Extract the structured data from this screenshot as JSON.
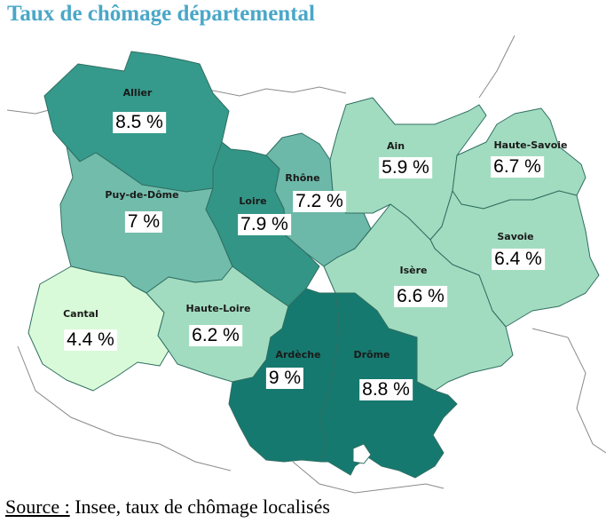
{
  "title": "Taux de chômage départemental",
  "source_label": "Source :",
  "source_text": " Insee, taux de chômage localisés",
  "departements": [
    {
      "key": "allier",
      "name": "Allier",
      "value": "8.5 %",
      "rate": 8.5,
      "color": "#359a8c"
    },
    {
      "key": "puy",
      "name": "Puy-de-Dôme",
      "value": "7 %",
      "rate": 7.0,
      "color": "#72bcab"
    },
    {
      "key": "loire",
      "name": "Loire",
      "value": "7.9 %",
      "rate": 7.9,
      "color": "#339586"
    },
    {
      "key": "rhone",
      "name": "Rhône",
      "value": "7.2 %",
      "rate": 7.2,
      "color": "#6cb8a9"
    },
    {
      "key": "ain",
      "name": "Ain",
      "value": "5.9 %",
      "rate": 5.9,
      "color": "#a2dcc0"
    },
    {
      "key": "hsavoie",
      "name": "Haute-Savoie",
      "value": "6.7 %",
      "rate": 6.7,
      "color": "#a2dcc0"
    },
    {
      "key": "savoie",
      "name": "Savoie",
      "value": "6.4 %",
      "rate": 6.4,
      "color": "#a2dcc0"
    },
    {
      "key": "isere",
      "name": "Isère",
      "value": "6.6 %",
      "rate": 6.6,
      "color": "#a2dcc0"
    },
    {
      "key": "cantal",
      "name": "Cantal",
      "value": "4.4 %",
      "rate": 4.4,
      "color": "#d9fad8"
    },
    {
      "key": "hloire",
      "name": "Haute-Loire",
      "value": "6.2 %",
      "rate": 6.2,
      "color": "#a2dcc0"
    },
    {
      "key": "ardeche",
      "name": "Ardèche",
      "value": "9 %",
      "rate": 9.0,
      "color": "#16796f"
    },
    {
      "key": "drome",
      "name": "Drôme",
      "value": "8.8 %",
      "rate": 8.8,
      "color": "#16796f"
    }
  ]
}
